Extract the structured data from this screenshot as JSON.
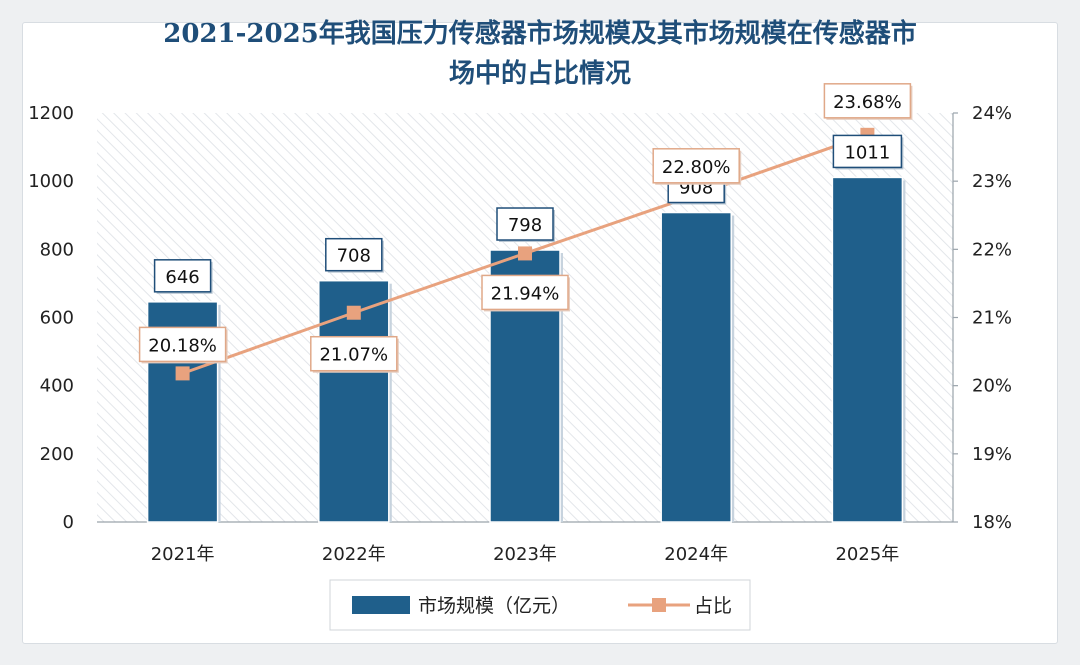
{
  "chart_data": {
    "type": "bar",
    "title_line1": "2021-2025年我国压力传感器市场规模及其市场规模在传感器市",
    "title_line2": "场中的占比情况",
    "categories": [
      "2021年",
      "2022年",
      "2023年",
      "2024年",
      "2025年"
    ],
    "series": [
      {
        "name": "市场规模（亿元）",
        "type": "bar",
        "axis": "left",
        "values": [
          646,
          708,
          798,
          908,
          1011
        ],
        "labels": [
          "646",
          "708",
          "798",
          "908",
          "1011"
        ]
      },
      {
        "name": "占比",
        "type": "line",
        "axis": "right",
        "values": [
          20.18,
          21.07,
          21.94,
          22.8,
          23.68
        ],
        "labels": [
          "20.18%",
          "21.07%",
          "21.94%",
          "22.80%",
          "23.68%"
        ]
      }
    ],
    "y_left": {
      "min": 0,
      "max": 1200,
      "ticks": [
        "0",
        "200",
        "400",
        "600",
        "800",
        "1000",
        "1200"
      ]
    },
    "y_right": {
      "min": 18,
      "max": 24,
      "ticks": [
        "18%",
        "19%",
        "20%",
        "21%",
        "22%",
        "23%",
        "24%"
      ]
    },
    "legend_position": "bottom-center",
    "grid": false,
    "colors": {
      "bar": "#1f5f8b",
      "line": "#e8a27e",
      "title": "#1f4e79"
    }
  }
}
